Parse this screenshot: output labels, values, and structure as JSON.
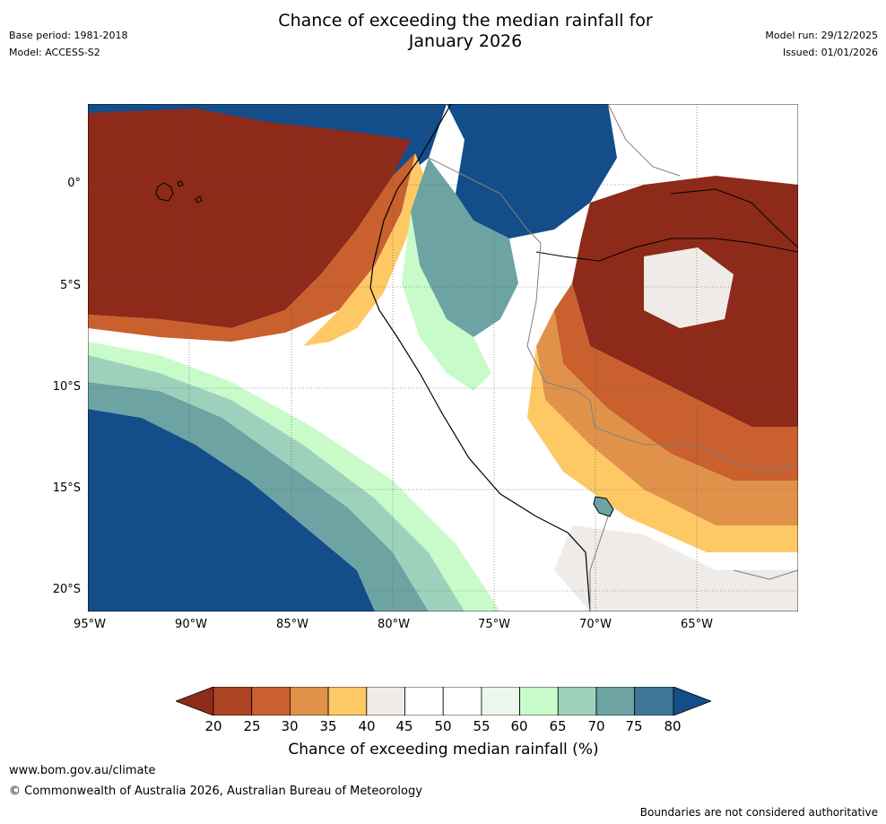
{
  "header": {
    "title_line1": "Chance of exceeding the median rainfall for",
    "title_line2": "January 2026",
    "base_period": "Base period: 1981-2018",
    "model": "Model: ACCESS-S2",
    "model_run": "Model run: 29/12/2025",
    "issued": "Issued: 01/01/2026"
  },
  "map": {
    "lon_labels": [
      "95°W",
      "90°W",
      "85°W",
      "80°W",
      "75°W",
      "70°W",
      "65°W"
    ],
    "lat_labels": [
      "0°",
      "5°S",
      "10°S",
      "15°S",
      "20°S"
    ]
  },
  "colorbar": {
    "ticks": [
      "20",
      "25",
      "30",
      "35",
      "40",
      "45",
      "50",
      "55",
      "60",
      "65",
      "70",
      "75",
      "80"
    ],
    "colors": [
      "#8e2a1a",
      "#ad4424",
      "#c9602e",
      "#e0924a",
      "#fec865",
      "#efebe8",
      "#ffffff",
      "#ffffff",
      "#ebf6ec",
      "#c8fbc9",
      "#9ed1bb",
      "#6da3a3",
      "#3e7896",
      "#134d8a"
    ],
    "title": "Chance of exceeding median rainfall (%)"
  },
  "footer": {
    "website": "www.bom.gov.au/climate",
    "copyright": "© Commonwealth of Australia 2026, Australian Bureau of Meteorology",
    "disclaimer": "Boundaries are not considered authoritative"
  }
}
